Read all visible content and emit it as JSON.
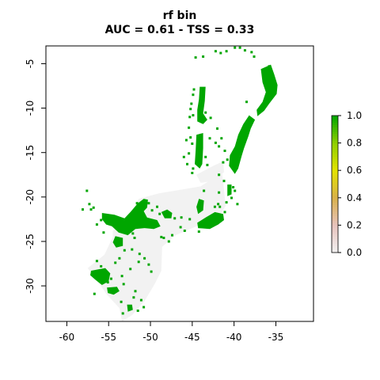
{
  "chart_data": {
    "type": "heatmap",
    "title": "rf bin",
    "subtitle": "AUC = 0.61 - TSS = 0.33",
    "xlabel": "",
    "ylabel": "",
    "xlim": [
      -62.5,
      -30.5
    ],
    "ylim": [
      -34,
      -3
    ],
    "x_ticks": [
      -60,
      -55,
      -50,
      -45,
      -40,
      -35
    ],
    "y_ticks": [
      -5,
      -10,
      -15,
      -20,
      -25,
      -30
    ],
    "legend": {
      "position": "right",
      "ticks": [
        "0.0",
        "0.2",
        "0.4",
        "0.6",
        "0.8",
        "1.0"
      ],
      "min": 0,
      "max": 1,
      "colors": [
        "#f2f2f2",
        "#e8c3bd",
        "#d9b14a",
        "#e3e300",
        "#8fcf00",
        "#00a600"
      ]
    },
    "colors": {
      "predicted_absence": "#f2f2f2",
      "predicted_presence": "#00a600"
    },
    "absence_regions": [
      [
        [
          -51.4,
          -20.2
        ],
        [
          -49,
          -19.6
        ],
        [
          -46.5,
          -19.2
        ],
        [
          -44,
          -18.8
        ],
        [
          -42.5,
          -17.9
        ],
        [
          -41.5,
          -16.9
        ],
        [
          -41.3,
          -18.3
        ],
        [
          -41,
          -21
        ],
        [
          -42,
          -22.5
        ],
        [
          -44.5,
          -23.3
        ],
        [
          -47,
          -24.3
        ],
        [
          -48.6,
          -25.6
        ],
        [
          -48.7,
          -28.3
        ],
        [
          -49.5,
          -29.8
        ],
        [
          -50.7,
          -31.7
        ],
        [
          -52.2,
          -33.3
        ],
        [
          -53.4,
          -34
        ],
        [
          -53.7,
          -32.5
        ],
        [
          -55.2,
          -31
        ],
        [
          -56.3,
          -29.5
        ],
        [
          -57.5,
          -28
        ],
        [
          -55.5,
          -26.5
        ],
        [
          -54.5,
          -24.5
        ],
        [
          -54.5,
          -23.8
        ],
        [
          -52.5,
          -22.4
        ]
      ],
      [
        [
          -44.5,
          -17.5
        ],
        [
          -42.5,
          -16.5
        ],
        [
          -41.3,
          -16
        ],
        [
          -41.2,
          -17.2
        ],
        [
          -42.5,
          -18.2
        ],
        [
          -44,
          -18.4
        ]
      ]
    ],
    "presence_regions": [
      [
        [
          -55.8,
          -21.8
        ],
        [
          -54.3,
          -22
        ],
        [
          -53.7,
          -22.2
        ],
        [
          -53.1,
          -22.4
        ],
        [
          -52.4,
          -21.7
        ],
        [
          -51.5,
          -20.7
        ],
        [
          -50.8,
          -20.2
        ],
        [
          -50.3,
          -20.3
        ],
        [
          -50.4,
          -21.2
        ],
        [
          -50.8,
          -21.6
        ],
        [
          -50.4,
          -22.3
        ],
        [
          -49.2,
          -22.6
        ],
        [
          -48.8,
          -23.3
        ],
        [
          -49.6,
          -23.6
        ],
        [
          -50.7,
          -23.5
        ],
        [
          -51.8,
          -23.6
        ],
        [
          -52.7,
          -24.3
        ],
        [
          -53.8,
          -24
        ],
        [
          -54.6,
          -23.3
        ],
        [
          -55.3,
          -23.1
        ],
        [
          -55.8,
          -22.5
        ]
      ],
      [
        [
          -36.8,
          -5.6
        ],
        [
          -35.6,
          -5.1
        ],
        [
          -35.2,
          -6.2
        ],
        [
          -34.8,
          -7.4
        ],
        [
          -34.9,
          -8.4
        ],
        [
          -35.8,
          -9.5
        ],
        [
          -36.4,
          -10.3
        ],
        [
          -37.2,
          -10.9
        ],
        [
          -37.3,
          -10.2
        ],
        [
          -36.6,
          -9.3
        ],
        [
          -36.2,
          -8.2
        ],
        [
          -36.6,
          -7.1
        ]
      ],
      [
        [
          -38.2,
          -10.8
        ],
        [
          -37.5,
          -11.3
        ],
        [
          -38,
          -12.3
        ],
        [
          -38.3,
          -13.2
        ],
        [
          -38.8,
          -14.5
        ],
        [
          -39.1,
          -15.4
        ],
        [
          -39.5,
          -16.8
        ],
        [
          -39.9,
          -17.4
        ],
        [
          -40.6,
          -16.5
        ],
        [
          -40.5,
          -15.3
        ],
        [
          -39.9,
          -14.3
        ],
        [
          -39.5,
          -13
        ],
        [
          -38.9,
          -11.8
        ]
      ],
      [
        [
          -44.1,
          -7.6
        ],
        [
          -43.4,
          -7.6
        ],
        [
          -43.5,
          -9.2
        ],
        [
          -43.7,
          -10.6
        ],
        [
          -43.2,
          -11.3
        ],
        [
          -43.7,
          -11.8
        ],
        [
          -44.4,
          -11.5
        ],
        [
          -44.4,
          -10.2
        ],
        [
          -44.2,
          -9
        ]
      ],
      [
        [
          -44.5,
          -13
        ],
        [
          -43.7,
          -12.8
        ],
        [
          -43.7,
          -14.5
        ],
        [
          -43.8,
          -16.3
        ],
        [
          -44.1,
          -16.8
        ],
        [
          -44.7,
          -16.3
        ],
        [
          -44.6,
          -14.8
        ]
      ],
      [
        [
          -44.2,
          -20.2
        ],
        [
          -43.6,
          -20.4
        ],
        [
          -43.7,
          -21.5
        ],
        [
          -44.3,
          -21.9
        ],
        [
          -44.5,
          -21.1
        ]
      ],
      [
        [
          -57.1,
          -28.3
        ],
        [
          -55.4,
          -28
        ],
        [
          -54.8,
          -28.6
        ],
        [
          -55,
          -29.5
        ],
        [
          -55.8,
          -29.9
        ],
        [
          -56.6,
          -29.3
        ],
        [
          -57.2,
          -28.8
        ]
      ],
      [
        [
          -55.2,
          -30.2
        ],
        [
          -54,
          -30.1
        ],
        [
          -53.7,
          -30.6
        ],
        [
          -54.4,
          -31
        ],
        [
          -55.1,
          -30.8
        ]
      ],
      [
        [
          -44.3,
          -23.5
        ],
        [
          -42.9,
          -23.6
        ],
        [
          -41.9,
          -23.1
        ],
        [
          -41.2,
          -22.6
        ],
        [
          -41.3,
          -21.9
        ],
        [
          -42.3,
          -21.7
        ],
        [
          -43.4,
          -22.3
        ],
        [
          -44.4,
          -22.9
        ]
      ],
      [
        [
          -40.8,
          -18.6
        ],
        [
          -40.3,
          -18.6
        ],
        [
          -40.3,
          -19.7
        ],
        [
          -40.8,
          -19.9
        ]
      ],
      [
        [
          -54.2,
          -24.4
        ],
        [
          -53.3,
          -24.6
        ],
        [
          -53.3,
          -25.5
        ],
        [
          -54.1,
          -25.7
        ],
        [
          -54.5,
          -25.1
        ]
      ],
      [
        [
          -52.8,
          -32.1
        ],
        [
          -52.2,
          -32.1
        ],
        [
          -52.1,
          -32.7
        ],
        [
          -52.7,
          -32.9
        ]
      ],
      [
        [
          -48.7,
          -21.7
        ],
        [
          -48,
          -21.4
        ],
        [
          -47.4,
          -21.8
        ],
        [
          -47.5,
          -22.4
        ],
        [
          -48.3,
          -22.4
        ]
      ]
    ],
    "presence_cells": [
      [
        -44.6,
        -4.3
      ],
      [
        -39.9,
        -3.2
      ],
      [
        -39.3,
        -3.2
      ],
      [
        -38.7,
        -3.5
      ],
      [
        -37.9,
        -3.7
      ],
      [
        -40.9,
        -3.6
      ],
      [
        -41.6,
        -3.8
      ],
      [
        -35.8,
        -5.3
      ],
      [
        -44.8,
        -7.9
      ],
      [
        -44.9,
        -8.5
      ],
      [
        -45.1,
        -9.5
      ],
      [
        -45.2,
        -10.1
      ],
      [
        -44.9,
        -10.8
      ],
      [
        -45.3,
        -11
      ],
      [
        -43.4,
        -10.5
      ],
      [
        -42.8,
        -11.1
      ],
      [
        -45.4,
        -12.2
      ],
      [
        -45.2,
        -13.3
      ],
      [
        -45,
        -14
      ],
      [
        -45.4,
        -15.1
      ],
      [
        -45.7,
        -13.6
      ],
      [
        -43.4,
        -15.5
      ],
      [
        -43.2,
        -16.4
      ],
      [
        -44.9,
        -16.8
      ],
      [
        -45,
        -17.3
      ],
      [
        -42.9,
        -13.4
      ],
      [
        -42.2,
        -13.9
      ],
      [
        -41.8,
        -14.3
      ],
      [
        -41.1,
        -14.8
      ],
      [
        -40.8,
        -15.8
      ],
      [
        -41.3,
        -16.1
      ],
      [
        -41.8,
        -17.5
      ],
      [
        -41.2,
        -18.2
      ],
      [
        -40.1,
        -18.9
      ],
      [
        -39.5,
        -15
      ],
      [
        -39.9,
        -19.3
      ],
      [
        -40.3,
        -20.1
      ],
      [
        -41.8,
        -19.5
      ],
      [
        -40.9,
        -20.6
      ],
      [
        -41.7,
        -21.1
      ],
      [
        -42.3,
        -21.1
      ],
      [
        -57.6,
        -19.3
      ],
      [
        -57.3,
        -20.8
      ],
      [
        -57.1,
        -21.4
      ],
      [
        -56.8,
        -21.2
      ],
      [
        -58.1,
        -21.4
      ],
      [
        -55.9,
        -22.6
      ],
      [
        -56.4,
        -23.1
      ],
      [
        -55.6,
        -24
      ],
      [
        -51.6,
        -20.7
      ],
      [
        -50.2,
        -20.7
      ],
      [
        -49.8,
        -21.5
      ],
      [
        -49.2,
        -21.1
      ],
      [
        -48.9,
        -21.9
      ],
      [
        -47.1,
        -22.4
      ],
      [
        -46.3,
        -22.3
      ],
      [
        -45.3,
        -22.5
      ],
      [
        -46.4,
        -23.4
      ],
      [
        -45.9,
        -23.8
      ],
      [
        -47.4,
        -24.3
      ],
      [
        -48.4,
        -24.6
      ],
      [
        -47.8,
        -25
      ],
      [
        -51.9,
        -24.6
      ],
      [
        -52.2,
        -25.9
      ],
      [
        -53.1,
        -26
      ],
      [
        -53.7,
        -26.9
      ],
      [
        -51.3,
        -26.4
      ],
      [
        -51.4,
        -27.3
      ],
      [
        -50.7,
        -26.9
      ],
      [
        -50.2,
        -27.6
      ],
      [
        -52.4,
        -28.1
      ],
      [
        -53.4,
        -28.9
      ],
      [
        -54.2,
        -27.4
      ],
      [
        -56.4,
        -27.2
      ],
      [
        -55.9,
        -27.8
      ],
      [
        -55.1,
        -29.6
      ],
      [
        -56.7,
        -30.9
      ],
      [
        -53.2,
        -29.8
      ],
      [
        -51.8,
        -30.6
      ],
      [
        -52,
        -31.3
      ],
      [
        -51.1,
        -31.6
      ],
      [
        -53.3,
        -33.1
      ],
      [
        -53.5,
        -31.8
      ],
      [
        -50.8,
        -32.4
      ],
      [
        -51.5,
        -32.8
      ],
      [
        -52.1,
        -24.1
      ],
      [
        -48.7,
        -24.5
      ],
      [
        -44.2,
        -23.9
      ],
      [
        -42.7,
        -22.9
      ],
      [
        -41.1,
        -21.7
      ],
      [
        -41.9,
        -20.8
      ],
      [
        -43.6,
        -19.3
      ],
      [
        -45.6,
        -16.3
      ],
      [
        -46,
        -15.5
      ],
      [
        -42,
        -12.3
      ],
      [
        -41.5,
        -13.4
      ],
      [
        -43.7,
        -4.2
      ],
      [
        -42.2,
        -3.6
      ],
      [
        -37.6,
        -4.2
      ],
      [
        -36,
        -8.3
      ],
      [
        -38.5,
        -9.3
      ],
      [
        -39.6,
        -20.8
      ],
      [
        -54.7,
        -29.2
      ],
      [
        -49.9,
        -28.4
      ]
    ]
  }
}
